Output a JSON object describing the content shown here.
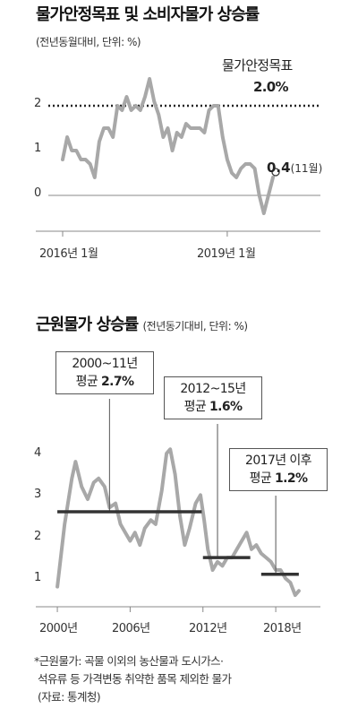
{
  "chart_data": [
    {
      "type": "line",
      "title": "물가안정목표 및 소비자물가 상승률",
      "subtitle": "(전년동월대비, 단위: %)",
      "x_tick_labels": [
        "2016년 1월",
        "2019년 1월"
      ],
      "y_ticks": [
        0,
        1,
        2
      ],
      "ylim": [
        -0.5,
        2.6
      ],
      "x_start": "2016-01",
      "x_end": "2019-11",
      "series": [
        {
          "values": [
            0.8,
            1.3,
            1.0,
            1.0,
            0.8,
            0.8,
            0.7,
            0.4,
            1.2,
            1.5,
            1.5,
            1.3,
            2.0,
            1.9,
            2.2,
            1.9,
            2.0,
            1.9,
            2.2,
            2.6,
            2.1,
            1.8,
            1.3,
            1.5,
            1.0,
            1.4,
            1.3,
            1.6,
            1.5,
            1.5,
            1.5,
            1.4,
            1.9,
            2.0,
            2.0,
            1.3,
            0.8,
            0.5,
            0.4,
            0.6,
            0.7,
            0.7,
            0.6,
            0.0,
            -0.4,
            0.0,
            0.4
          ]
        }
      ],
      "target": {
        "label": "물가안정목표",
        "value": 2.0,
        "value_label": "2.0%"
      },
      "last_point": {
        "value_label": "0.4",
        "note": "(11월)"
      }
    },
    {
      "type": "line",
      "title": "근원물가 상승률",
      "subtitle": "(전년동기대비, 단위: %)",
      "x_tick_labels": [
        "2000년",
        "2006년",
        "2012년",
        "2018년"
      ],
      "y_ticks": [
        1,
        2,
        3,
        4
      ],
      "ylim": [
        0.6,
        4.6
      ],
      "x_range": [
        1999.7,
        2020.5
      ],
      "series": [
        {
          "points": [
            [
              2000.0,
              0.9
            ],
            [
              2000.6,
              2.4
            ],
            [
              2001.2,
              3.5
            ],
            [
              2001.5,
              3.9
            ],
            [
              2002.0,
              3.3
            ],
            [
              2002.5,
              3.0
            ],
            [
              2003.0,
              3.4
            ],
            [
              2003.4,
              3.5
            ],
            [
              2003.9,
              3.3
            ],
            [
              2004.3,
              2.8
            ],
            [
              2004.8,
              2.9
            ],
            [
              2005.2,
              2.4
            ],
            [
              2005.6,
              2.2
            ],
            [
              2006.0,
              2.0
            ],
            [
              2006.4,
              2.2
            ],
            [
              2006.8,
              1.9
            ],
            [
              2007.2,
              2.3
            ],
            [
              2007.7,
              2.5
            ],
            [
              2008.1,
              2.4
            ],
            [
              2008.6,
              3.2
            ],
            [
              2009.0,
              4.1
            ],
            [
              2009.3,
              4.2
            ],
            [
              2009.7,
              3.6
            ],
            [
              2010.1,
              2.6
            ],
            [
              2010.5,
              1.9
            ],
            [
              2010.9,
              2.3
            ],
            [
              2011.4,
              2.9
            ],
            [
              2011.8,
              3.1
            ],
            [
              2012.1,
              2.5
            ],
            [
              2012.4,
              1.8
            ],
            [
              2012.8,
              1.3
            ],
            [
              2013.2,
              1.5
            ],
            [
              2013.6,
              1.4
            ],
            [
              2014.0,
              1.6
            ],
            [
              2014.4,
              1.6
            ],
            [
              2014.8,
              1.8
            ],
            [
              2015.2,
              2.0
            ],
            [
              2015.6,
              2.2
            ],
            [
              2016.0,
              1.8
            ],
            [
              2016.4,
              1.9
            ],
            [
              2016.8,
              1.7
            ],
            [
              2017.2,
              1.6
            ],
            [
              2017.6,
              1.5
            ],
            [
              2018.0,
              1.3
            ],
            [
              2018.4,
              1.3
            ],
            [
              2018.8,
              1.1
            ],
            [
              2019.2,
              1.0
            ],
            [
              2019.6,
              0.7
            ],
            [
              2019.9,
              0.8
            ]
          ]
        }
      ],
      "averages": [
        {
          "from": 2000.0,
          "to": 2011.9,
          "value": 2.7,
          "period": "2000~11년",
          "label_prefix": "평균",
          "value_label": "2.7%"
        },
        {
          "from": 2012.0,
          "to": 2015.9,
          "value": 1.6,
          "period": "2012~15년",
          "label_prefix": "평균",
          "value_label": "1.6%"
        },
        {
          "from": 2016.8,
          "to": 2019.9,
          "value": 1.2,
          "period": "2017년 이후",
          "label_prefix": "평균",
          "value_label": "1.2%"
        }
      ]
    }
  ],
  "footnote": {
    "line1": "*근원물가: 곡물 이외의 농산물과 도시가스·",
    "line2": "석유류 등 가격변동 취약한 품목 제외한 물가",
    "line3": "(자료: 통계청)"
  },
  "colors": {
    "series": "#a8a8a8",
    "average_line": "#333333",
    "axis": "#888888",
    "target_line": "#222222"
  }
}
